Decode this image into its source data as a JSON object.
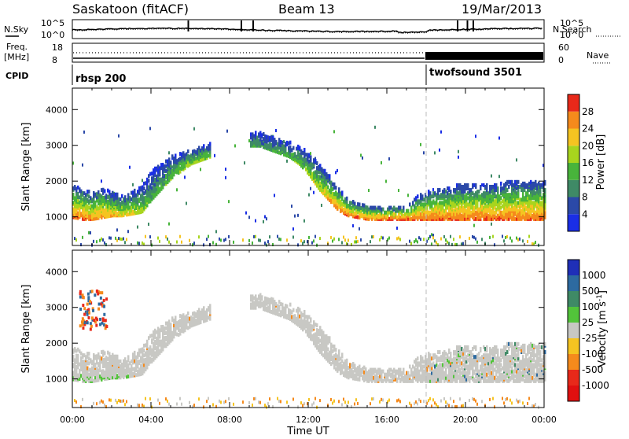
{
  "header": {
    "station": "Saskatoon (fitACF)",
    "beam": "Beam 13",
    "date": "19/Mar/2013"
  },
  "top_labels": {
    "nsky": "N.Sky",
    "nsky_tick_top": "10^5",
    "nsky_tick_bottom": "10^0",
    "nsearch": "N.Search",
    "nsearch_tick_top": "10^5",
    "nsearch_tick_bottom": "10^0",
    "freq": "Freq.",
    "freq_unit": "[MHz]",
    "freq_tick_top": "18",
    "freq_tick_bottom": "8",
    "nave": "Nave",
    "nave_tick_top": "60",
    "nave_tick_bottom": "0",
    "cpid": "CPID"
  },
  "cpid_segments": [
    {
      "start_hour": 0,
      "label": "rbsp 200"
    },
    {
      "start_hour": 18,
      "label": "twofsound 3501"
    }
  ],
  "chart_data": [
    {
      "type": "heatmap",
      "title": "",
      "ylabel": "Slant Range [km]",
      "xlabel": "",
      "xlim": [
        0,
        24
      ],
      "ylim": [
        200,
        4600
      ],
      "x_ticks": [
        0,
        4,
        8,
        12,
        16,
        20,
        24
      ],
      "y_ticks": [
        1000,
        2000,
        3000,
        4000
      ],
      "colorbar_label": "Power [dB]",
      "colorbar_ticks": [
        "4",
        "8",
        "12",
        "16",
        "20",
        "24",
        "28"
      ],
      "colorbar_colors": [
        "#1a2ee6",
        "#2b49a8",
        "#3f8a66",
        "#48b43b",
        "#a8d51e",
        "#f5c421",
        "#f58a1c",
        "#e8291a"
      ],
      "colorbar_range": [
        0,
        32
      ],
      "scatter_band": {
        "hours": [
          0,
          0.5,
          1,
          1.5,
          2,
          2.5,
          3,
          3.5,
          4,
          4.5,
          5,
          5.5,
          6,
          6.5,
          7,
          7.5,
          8,
          8.5,
          9,
          9.5,
          10,
          10.5,
          11,
          11.5,
          12,
          12.5,
          13,
          13.5,
          14,
          14.5,
          15,
          15.5,
          16,
          16.5,
          17,
          17.5,
          18,
          18.5,
          19,
          19.5,
          20,
          20.5,
          21,
          21.5,
          22,
          22.5,
          23,
          23.5,
          24
        ],
        "lower_km": [
          1000,
          950,
          950,
          1000,
          1050,
          1050,
          1100,
          1150,
          1500,
          1800,
          2100,
          2300,
          2500,
          2600,
          2700,
          null,
          null,
          null,
          3000,
          3000,
          2900,
          2800,
          2700,
          2500,
          2200,
          1800,
          1500,
          1200,
          1050,
          1000,
          950,
          950,
          950,
          950,
          950,
          950,
          950,
          950,
          950,
          950,
          950,
          950,
          950,
          950,
          950,
          950,
          950,
          950,
          950
        ],
        "upper_km": [
          1900,
          1800,
          1700,
          1800,
          1700,
          1600,
          1700,
          1900,
          2300,
          2500,
          2700,
          2800,
          2900,
          3000,
          3100,
          null,
          null,
          null,
          3400,
          3400,
          3300,
          3200,
          3100,
          3000,
          2800,
          2500,
          2200,
          1800,
          1500,
          1400,
          1300,
          1300,
          1300,
          1300,
          1300,
          1600,
          1700,
          1800,
          1800,
          1900,
          1900,
          1900,
          1900,
          1900,
          2000,
          2000,
          2000,
          2000,
          2000
        ],
        "peak_db": [
          28,
          28,
          26,
          26,
          24,
          22,
          22,
          18,
          14,
          14,
          16,
          18,
          18,
          18,
          16,
          null,
          null,
          null,
          12,
          12,
          12,
          14,
          14,
          16,
          18,
          20,
          24,
          28,
          28,
          28,
          28,
          28,
          28,
          28,
          28,
          28,
          28,
          28,
          28,
          28,
          28,
          28,
          28,
          28,
          28,
          28,
          28,
          28,
          28
        ]
      }
    },
    {
      "type": "heatmap",
      "title": "",
      "ylabel": "Slant Range [km]",
      "xlabel": "Time UT",
      "xlim": [
        0,
        24
      ],
      "ylim": [
        200,
        4600
      ],
      "x_ticks": [
        0,
        4,
        8,
        12,
        16,
        20,
        24
      ],
      "x_tick_labels": [
        "00:00",
        "04:00",
        "08:00",
        "12:00",
        "16:00",
        "20:00",
        "00:00"
      ],
      "y_ticks": [
        1000,
        2000,
        3000,
        4000
      ],
      "colorbar_label": "Velocity [m s^-1]",
      "colorbar_ticks": [
        "1000",
        "500",
        "100",
        "25",
        "-25",
        "-100",
        "-500",
        "-1000"
      ],
      "colorbar_colors": [
        "#1f2fb8",
        "#2d6aa0",
        "#3f8a66",
        "#52c43a",
        "#c8c8c4",
        "#f5c421",
        "#f58a1c",
        "#e8291a",
        "#e01010"
      ],
      "ground_scatter_color": "#c8c8c4"
    }
  ]
}
